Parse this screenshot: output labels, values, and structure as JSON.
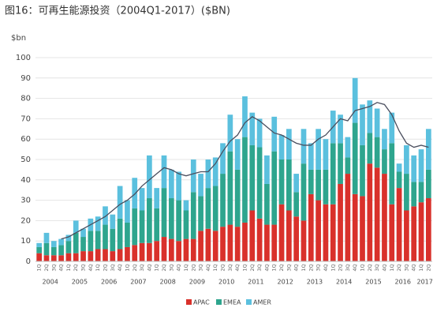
{
  "chart_data": {
    "type": "bar",
    "title": "图16：可再生能源投资（2004Q1-2017）($BN)",
    "y_label": "$bn",
    "categories": [
      "1Q",
      "2Q",
      "3Q",
      "4Q",
      "1Q",
      "2Q",
      "3Q",
      "4Q",
      "1Q",
      "2Q",
      "3Q",
      "4Q",
      "1Q",
      "2Q",
      "3Q",
      "4Q",
      "1Q",
      "2Q",
      "3Q",
      "4Q",
      "1Q",
      "2Q",
      "3Q",
      "4Q",
      "1Q",
      "2Q",
      "3Q",
      "4Q",
      "1Q",
      "2Q",
      "3Q",
      "4Q",
      "1Q",
      "2Q",
      "3Q",
      "4Q",
      "1Q",
      "2Q",
      "3Q",
      "4Q",
      "1Q",
      "2Q",
      "3Q",
      "4Q",
      "1Q",
      "2Q",
      "3Q",
      "4Q",
      "1Q",
      "2Q",
      "3Q",
      "4Q",
      "1Q",
      "2Q"
    ],
    "years": [
      "2004",
      "2005",
      "2006",
      "2007",
      "2008",
      "2009",
      "2010",
      "2011",
      "2012",
      "2013",
      "2014",
      "2015",
      "2016",
      "2017"
    ],
    "stacked": true,
    "series": [
      {
        "name": "APAC",
        "color": "#d9312b",
        "values": [
          4,
          3,
          3,
          3,
          4,
          4,
          5,
          5,
          6,
          6,
          5,
          6,
          7,
          8,
          9,
          9,
          10,
          12,
          11,
          10,
          11,
          11,
          15,
          16,
          15,
          17,
          18,
          17,
          19,
          25,
          21,
          18,
          18,
          28,
          25,
          22,
          20,
          33,
          30,
          28,
          28,
          38,
          43,
          33,
          32,
          48,
          46,
          43,
          28,
          36,
          25,
          27,
          29,
          31
        ]
      },
      {
        "name": "EMEA",
        "color": "#2ea58e",
        "values": [
          3,
          6,
          4,
          5,
          6,
          10,
          7,
          10,
          9,
          12,
          11,
          15,
          12,
          18,
          16,
          22,
          16,
          24,
          20,
          20,
          14,
          23,
          17,
          20,
          22,
          26,
          36,
          28,
          42,
          32,
          35,
          20,
          36,
          22,
          25,
          12,
          28,
          12,
          15,
          17,
          30,
          20,
          8,
          35,
          25,
          15,
          15,
          12,
          30,
          8,
          18,
          12,
          10,
          14
        ]
      },
      {
        "name": "AMER",
        "color": "#5bc0de",
        "values": [
          2,
          5,
          3,
          3,
          3,
          6,
          4,
          6,
          7,
          9,
          7,
          16,
          11,
          15,
          11,
          21,
          10,
          16,
          14,
          14,
          5,
          16,
          11,
          14,
          14,
          15,
          18,
          15,
          20,
          16,
          14,
          14,
          17,
          12,
          15,
          9,
          17,
          13,
          20,
          15,
          16,
          14,
          10,
          22,
          20,
          16,
          14,
          10,
          15,
          4,
          14,
          13,
          16,
          20
        ]
      }
    ],
    "line": {
      "color": "#4a4e5e",
      "values": [
        null,
        null,
        null,
        11,
        12,
        14,
        16,
        18,
        20,
        22,
        25,
        28,
        30,
        33,
        37,
        40,
        43,
        46,
        45,
        43,
        42,
        43,
        44,
        44,
        48,
        54,
        59,
        62,
        68,
        71,
        69,
        66,
        63,
        62,
        60,
        58,
        57,
        57,
        60,
        62,
        66,
        70,
        69,
        74,
        75,
        76,
        78,
        77,
        72,
        64,
        58,
        56,
        57,
        56
      ]
    },
    "ylim": [
      0,
      105
    ],
    "yticks": [
      0,
      10,
      20,
      30,
      40,
      50,
      60,
      70,
      80,
      90,
      100
    ],
    "grid": true,
    "legend": "bottom"
  }
}
